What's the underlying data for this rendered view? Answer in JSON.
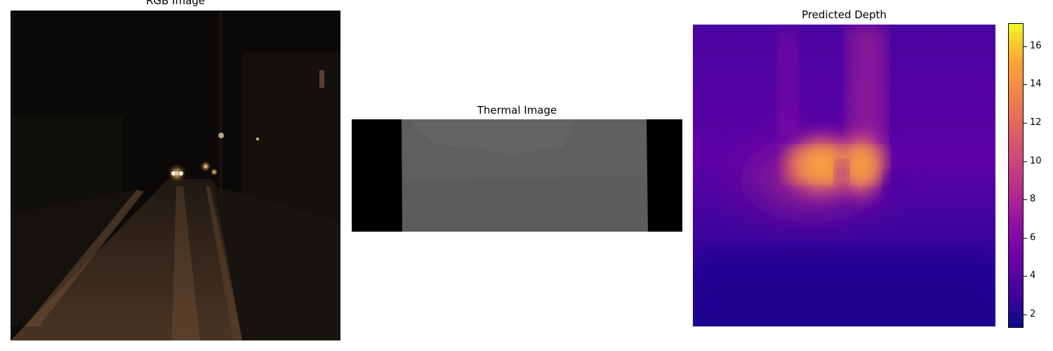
{
  "panels": {
    "rgb": {
      "title": "RGB Image"
    },
    "thermal": {
      "title": "Thermal Image"
    },
    "depth": {
      "title": "Predicted Depth"
    }
  },
  "colorbar": {
    "colormap": "plasma",
    "range": [
      1.3,
      17.2
    ],
    "ticks": [
      "2",
      "4",
      "6",
      "8",
      "10",
      "12",
      "14",
      "16"
    ]
  }
}
